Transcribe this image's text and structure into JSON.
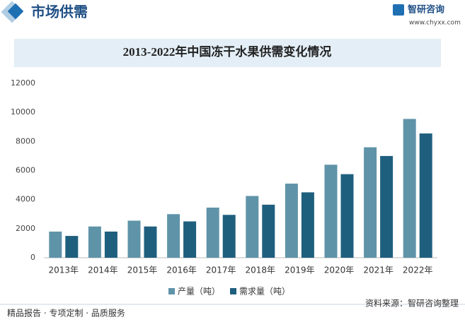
{
  "header": {
    "title": "市场供需",
    "brand": "智研咨询",
    "url": "www.chyxx.com"
  },
  "chart_data": {
    "type": "bar",
    "title": "2013-2022年中国冻干水果供需变化情况",
    "categories": [
      "2013年",
      "2014年",
      "2015年",
      "2016年",
      "2017年",
      "2018年",
      "2019年",
      "2020年",
      "2021年",
      "2022年"
    ],
    "series": [
      {
        "name": "产量（吨）",
        "color": "#5f93a8",
        "values": [
          1800,
          2150,
          2550,
          3000,
          3450,
          4250,
          5100,
          6400,
          7600,
          9550
        ]
      },
      {
        "name": "需求量（吨）",
        "color": "#1f5f7e",
        "values": [
          1500,
          1800,
          2150,
          2500,
          2950,
          3650,
          4500,
          5750,
          7000,
          8550
        ]
      }
    ],
    "ylim": [
      0,
      12000
    ],
    "yticks": [
      0,
      2000,
      4000,
      6000,
      8000,
      10000,
      12000
    ],
    "grid": false,
    "legend": "bottom"
  },
  "footer": {
    "left": "精品报告 · 专项定制 · 品质服务",
    "source": "资料来源：智研咨询整理"
  }
}
